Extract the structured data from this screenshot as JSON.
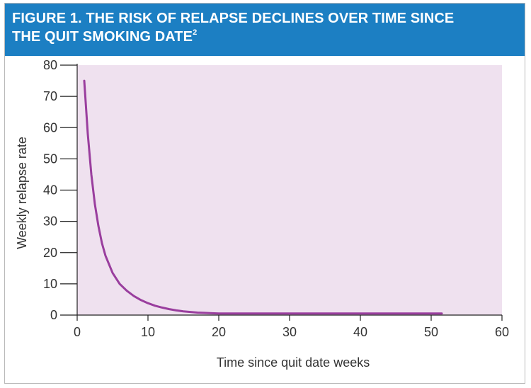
{
  "header": {
    "title_line1": "FIGURE 1. THE RISK OF RELAPSE DECLINES OVER TIME SINCE",
    "title_line2": "THE QUIT SMOKING DATE",
    "title_superscript": "2"
  },
  "colors": {
    "header_bg": "#1c7fc3",
    "plot_bg": "#efe1ef",
    "line": "#9a3e9e"
  },
  "chart_data": {
    "type": "line",
    "title": "FIGURE 1. THE RISK OF RELAPSE DECLINES OVER TIME SINCE THE QUIT SMOKING DATE",
    "xlabel": "Time since quit date weeks",
    "ylabel": "Weekly relapse rate",
    "xlim": [
      0,
      60
    ],
    "ylim": [
      0,
      80
    ],
    "x_ticks": [
      0,
      10,
      20,
      30,
      40,
      50,
      60
    ],
    "y_ticks": [
      0,
      10,
      20,
      30,
      40,
      50,
      60,
      70,
      80
    ],
    "grid": false,
    "series": [
      {
        "x": [
          1,
          1.5,
          2,
          2.5,
          3,
          3.5,
          4,
          5,
          6,
          7,
          8,
          9,
          10,
          11,
          12,
          13,
          14,
          15,
          16,
          17,
          18,
          19,
          20,
          22,
          25,
          30,
          35,
          40,
          45,
          50,
          51.5
        ],
        "y": [
          75,
          58,
          45,
          35.5,
          28.5,
          23,
          19,
          13.5,
          10,
          7.8,
          6.1,
          4.8,
          3.8,
          3.0,
          2.4,
          1.9,
          1.5,
          1.2,
          1.0,
          0.8,
          0.7,
          0.6,
          0.5,
          0.5,
          0.5,
          0.5,
          0.5,
          0.5,
          0.5,
          0.5,
          0.5
        ]
      }
    ]
  }
}
